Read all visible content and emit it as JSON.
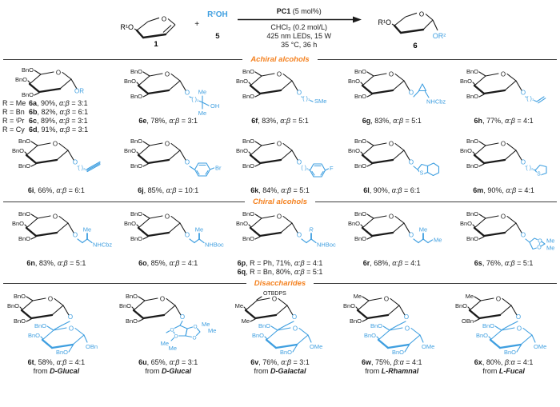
{
  "figure": {
    "colors": {
      "blue": "#3f9fe0",
      "orange": "#f4811f",
      "black": "#1b1b1b"
    },
    "scheme": {
      "reactant_group": "R¹O",
      "reactant_num": "1",
      "ring_o": "O",
      "plus": "+",
      "alcohol_formula": "R²OH",
      "alcohol_num": "5",
      "catalyst_bold": "PC1",
      "catalyst_rest": " (5 mol%)",
      "conditions": [
        "CHCl₃ (0.2 mol/L)",
        "425 nm LEDs, 15 W",
        "35 °C, 36 h"
      ],
      "product_group": "R¹O",
      "product_or": "OR²",
      "product_num": "6"
    },
    "sections": [
      {
        "title": "Achiral alcohols",
        "cells": [
          {
            "kind": "variants",
            "sugar": [
              "BnO",
              "BnO",
              "BnO"
            ],
            "aglycone": {
              "shape": "or",
              "labels": [
                "OR"
              ]
            },
            "entries": [
              {
                "r": "R = Me",
                "id": "6a",
                "yield": "90%",
                "ratio_label": "α:β",
                "ratio": "3:1"
              },
              {
                "r": "R = Bn",
                "id": "6b",
                "yield": "82%",
                "ratio_label": "α:β",
                "ratio": "6:1"
              },
              {
                "r": "R = ⁱPr",
                "id": "6c",
                "yield": "89%",
                "ratio_label": "α:β",
                "ratio": "3:1"
              },
              {
                "r": "R = Cy",
                "id": "6d",
                "yield": "91%",
                "ratio_label": "α:β",
                "ratio": "3:1"
              }
            ]
          },
          {
            "kind": "single",
            "id": "6e",
            "yield": "78%",
            "ratio_label": "α:β",
            "ratio": "3:1",
            "sugar": [
              "BnO",
              "BnO",
              "BnO"
            ],
            "aglycone": {
              "shape": "tert-oh",
              "bracket": "( )₂",
              "labels": [
                "Me",
                "OH",
                "Me"
              ]
            }
          },
          {
            "kind": "single",
            "id": "6f",
            "yield": "83%",
            "ratio_label": "α:β",
            "ratio": "5:1",
            "sugar": [
              "BnO",
              "BnO",
              "BnO"
            ],
            "aglycone": {
              "shape": "chain-end",
              "bracket": "( )₃",
              "labels": [
                "SMe"
              ]
            }
          },
          {
            "kind": "single",
            "id": "6g",
            "yield": "83%",
            "ratio_label": "α:β",
            "ratio": "5:1",
            "sugar": [
              "BnO",
              "BnO",
              "BnO"
            ],
            "aglycone": {
              "shape": "cyclopropane",
              "labels": [
                "NHCbz"
              ]
            }
          },
          {
            "kind": "single",
            "id": "6h",
            "yield": "77%",
            "ratio_label": "α:β",
            "ratio": "4:1",
            "sugar": [
              "BnO",
              "BnO",
              "BnO"
            ],
            "aglycone": {
              "shape": "alkene",
              "bracket": "( )₃",
              "labels": []
            }
          },
          {
            "kind": "single",
            "id": "6i",
            "yield": "66%",
            "ratio_label": "α:β",
            "ratio": "6:1",
            "sugar": [
              "BnO",
              "BnO",
              "BnO"
            ],
            "aglycone": {
              "shape": "alkyne",
              "bracket": "( )₂",
              "labels": []
            }
          },
          {
            "kind": "single",
            "id": "6j",
            "yield": "85%",
            "ratio_label": "α:β",
            "ratio": "10:1",
            "sugar": [
              "BnO",
              "BnO",
              "BnO"
            ],
            "aglycone": {
              "shape": "benzyl-aryl",
              "labels": [
                "Br"
              ]
            }
          },
          {
            "kind": "single",
            "id": "6k",
            "yield": "84%",
            "ratio_label": "α:β",
            "ratio": "5:1",
            "sugar": [
              "BnO",
              "BnO",
              "BnO"
            ],
            "aglycone": {
              "shape": "ethyl-aryl",
              "bracket": "( )₂",
              "labels": [
                "F"
              ]
            }
          },
          {
            "kind": "single",
            "id": "6l",
            "yield": "90%",
            "ratio_label": "α:β",
            "ratio": "6:1",
            "sugar": [
              "BnO",
              "BnO",
              "BnO"
            ],
            "aglycone": {
              "shape": "benzothiophene",
              "labels": [
                "S"
              ]
            }
          },
          {
            "kind": "single",
            "id": "6m",
            "yield": "90%",
            "ratio_label": "α:β",
            "ratio": "4:1",
            "sugar": [
              "BnO",
              "BnO",
              "BnO"
            ],
            "aglycone": {
              "shape": "thiophene",
              "bracket": "( )₂",
              "labels": [
                "S"
              ]
            }
          }
        ]
      },
      {
        "title": "Chiral alcohols",
        "cells": [
          {
            "kind": "single",
            "id": "6n",
            "yield": "83%",
            "ratio_label": "α:β",
            "ratio": "5:1",
            "sugar": [
              "BnO",
              "BnO",
              "BnO"
            ],
            "aglycone": {
              "shape": "amino-chain",
              "labels": [
                "Me",
                "NHCbz"
              ]
            }
          },
          {
            "kind": "single",
            "id": "6o",
            "yield": "85%",
            "ratio_label": "α:β",
            "ratio": "4:1",
            "sugar": [
              "BnO",
              "BnO",
              "BnO"
            ],
            "aglycone": {
              "shape": "amino-chain",
              "labels": [
                "Me",
                "NHBoc"
              ]
            }
          },
          {
            "kind": "variants2",
            "sugar": [
              "BnO",
              "BnO",
              "BnO"
            ],
            "aglycone": {
              "shape": "amino-chain",
              "labels": [
                "R",
                "NHBoc"
              ]
            },
            "entries": [
              {
                "id": "6p",
                "r": "R = Ph",
                "yield": "71%",
                "ratio_label": "α:β",
                "ratio": "4:1"
              },
              {
                "id": "6q",
                "r": "R = Bn",
                "yield": "80%",
                "ratio_label": "α:β",
                "ratio": "5:1"
              }
            ]
          },
          {
            "kind": "single",
            "id": "6r",
            "yield": "68%",
            "ratio_label": "α:β",
            "ratio": "4:1",
            "sugar": [
              "BnO",
              "BnO",
              "BnO"
            ],
            "aglycone": {
              "shape": "methylbutyl",
              "labels": [
                "Me",
                "Me"
              ]
            }
          },
          {
            "kind": "single",
            "id": "6s",
            "yield": "76%",
            "ratio_label": "α:β",
            "ratio": "5:1",
            "sugar": [
              "BnO",
              "BnO",
              "BnO"
            ],
            "aglycone": {
              "shape": "dioxolane",
              "labels": [
                "O",
                "O",
                "Me",
                "Me"
              ]
            }
          }
        ]
      },
      {
        "title": "Disaccharides",
        "cells": [
          {
            "kind": "single",
            "id": "6t",
            "yield": "58%",
            "ratio_label": "α:β",
            "ratio": "4:1",
            "from": "D-Glucal",
            "sugar": [
              "BnO",
              "BnO",
              "BnO"
            ],
            "aglycone": {
              "shape": "sugar2",
              "labels": [
                "BnO",
                "BnO",
                "BnO",
                "OBn"
              ]
            }
          },
          {
            "kind": "single",
            "id": "6u",
            "yield": "65%",
            "ratio_label": "α:β",
            "ratio": "3:1",
            "from": "D-Glucal",
            "sugar": [
              "BnO",
              "BnO",
              "BnO"
            ],
            "aglycone": {
              "shape": "diacetone",
              "labels": [
                "O",
                "O",
                "O",
                "O",
                "Me",
                "Me",
                "Me",
                "Me"
              ]
            }
          },
          {
            "kind": "single",
            "id": "6v",
            "yield": "76%",
            "ratio_label": "α:β",
            "ratio": "3:1",
            "from": "D-Galactal",
            "sugar": [
              "",
              "Me",
              "Me"
            ],
            "sugar_top": "OTBDPS",
            "aglycone": {
              "shape": "sugar2",
              "labels": [
                "BnO",
                "BnO",
                "BnO",
                "OMe"
              ]
            }
          },
          {
            "kind": "single",
            "id": "6w",
            "yield": "75%",
            "ratio_label": "β:α",
            "ratio": "4:1",
            "from": "L-Rhamnal",
            "sugar": [
              "Me",
              "BnO",
              "BnO"
            ],
            "aglycone": {
              "shape": "sugar2",
              "labels": [
                "BnO",
                "BnO",
                "BnO",
                "OMe"
              ]
            }
          },
          {
            "kind": "single",
            "id": "6x",
            "yield": "80%",
            "ratio_label": "β:α",
            "ratio": "4:1",
            "from": "L-Fucal",
            "sugar": [
              "Me",
              "BnO",
              "OBn"
            ],
            "aglycone": {
              "shape": "sugar2",
              "labels": [
                "BnO",
                "BnO",
                "BnO",
                "OMe"
              ]
            }
          }
        ]
      }
    ]
  }
}
